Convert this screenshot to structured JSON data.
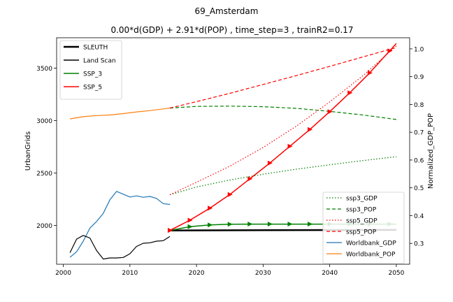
{
  "chart_data": {
    "type": "line",
    "suptitle": "69_Amsterdam",
    "title": "0.00*d(GDP) + 2.91*d(POP) , time_step=3 , trainR2=0.17",
    "xlim": [
      1999,
      2052
    ],
    "x_ticks": [
      2000,
      2010,
      2020,
      2030,
      2040,
      2050
    ],
    "left_axis": {
      "label": "UrbanGrids",
      "ylim": [
        1630,
        3790
      ],
      "ticks": [
        2000,
        2500,
        3000,
        3500
      ]
    },
    "right_axis": {
      "label": "Normalized_GDP_POP",
      "ylim": [
        0.225,
        1.04
      ],
      "ticks": [
        0.3,
        0.4,
        0.5,
        0.6,
        0.7,
        0.8,
        0.9,
        1.0
      ]
    },
    "legend_left": [
      {
        "label": "SLEUTH",
        "color": "#000000",
        "width": 2.5
      },
      {
        "label": "Land Scan",
        "color": "#000000",
        "width": 1.5
      },
      {
        "label": "SSP_3",
        "color": "#008000",
        "width": 1.5
      },
      {
        "label": "SSP_5",
        "color": "#ff0000",
        "width": 1.5
      }
    ],
    "legend_right": [
      {
        "label": "ssp3_GDP",
        "color": "#008000",
        "dash": "dotted"
      },
      {
        "label": "ssp3_POP",
        "color": "#008000",
        "dash": "dashed"
      },
      {
        "label": "ssp5_GDP",
        "color": "#ff0000",
        "dash": "dotted"
      },
      {
        "label": "ssp5_POP",
        "color": "#ff0000",
        "dash": "dashed"
      },
      {
        "label": "Worldbank_GDP",
        "color": "#1f77b4",
        "dash": "solid"
      },
      {
        "label": "Worldbank_POP",
        "color": "#ff7f0e",
        "dash": "solid"
      }
    ],
    "series": [
      {
        "name": "SLEUTH",
        "axis": "left",
        "color": "#000000",
        "width": 2.5,
        "style": "solid",
        "x": [
          2016,
          2050
        ],
        "y": [
          1953,
          1957
        ]
      },
      {
        "name": "Land Scan",
        "axis": "left",
        "color": "#000000",
        "width": 1.2,
        "style": "solid",
        "x": [
          2001,
          2002,
          2003,
          2004,
          2005,
          2006,
          2007,
          2008,
          2009,
          2010,
          2011,
          2012,
          2013,
          2014,
          2015,
          2016
        ],
        "y": [
          1740,
          1870,
          1905,
          1880,
          1760,
          1680,
          1690,
          1690,
          1695,
          1730,
          1800,
          1830,
          1835,
          1850,
          1855,
          1895
        ]
      },
      {
        "name": "SSP_3",
        "axis": "left",
        "color": "#008000",
        "width": 1.5,
        "style": "solid",
        "marker": "triangle",
        "x": [
          2016,
          2019,
          2022,
          2025,
          2028,
          2031,
          2034,
          2037,
          2040,
          2043,
          2046,
          2049,
          2050
        ],
        "y": [
          1953,
          1988,
          2005,
          2012,
          2013,
          2013,
          2013,
          2013,
          2013,
          2013,
          2013,
          2013,
          2013
        ]
      },
      {
        "name": "SSP_5",
        "axis": "left",
        "color": "#ff0000",
        "width": 1.5,
        "style": "solid",
        "marker": "triangle",
        "x": [
          2016,
          2019,
          2022,
          2025,
          2028,
          2031,
          2034,
          2037,
          2040,
          2043,
          2046,
          2049,
          2050
        ],
        "y": [
          1953,
          2050,
          2165,
          2295,
          2445,
          2595,
          2755,
          2915,
          3085,
          3265,
          3455,
          3665,
          3735
        ]
      },
      {
        "name": "ssp3_GDP",
        "axis": "right",
        "color": "#008000",
        "width": 1.2,
        "style": "dotted",
        "x": [
          2016,
          2020,
          2025,
          2030,
          2035,
          2040,
          2045,
          2050
        ],
        "y": [
          0.475,
          0.503,
          0.528,
          0.549,
          0.567,
          0.583,
          0.598,
          0.612
        ]
      },
      {
        "name": "ssp3_POP",
        "axis": "right",
        "color": "#008000",
        "width": 1.2,
        "style": "dashed",
        "x": [
          2016,
          2020,
          2025,
          2030,
          2035,
          2040,
          2045,
          2050
        ],
        "y": [
          0.787,
          0.793,
          0.794,
          0.792,
          0.786,
          0.775,
          0.762,
          0.746
        ]
      },
      {
        "name": "ssp5_GDP",
        "axis": "right",
        "color": "#ff0000",
        "width": 1.2,
        "style": "dotted",
        "x": [
          2016,
          2020,
          2025,
          2030,
          2035,
          2040,
          2045,
          2050
        ],
        "y": [
          0.475,
          0.52,
          0.578,
          0.645,
          0.722,
          0.809,
          0.904,
          1.01
        ]
      },
      {
        "name": "ssp5_POP",
        "axis": "right",
        "color": "#ff0000",
        "width": 1.2,
        "style": "dashed",
        "x": [
          2016,
          2020,
          2025,
          2030,
          2035,
          2040,
          2045,
          2050
        ],
        "y": [
          0.787,
          0.81,
          0.84,
          0.872,
          0.904,
          0.937,
          0.971,
          1.005
        ]
      },
      {
        "name": "Worldbank_GDP",
        "axis": "right",
        "color": "#1f77b4",
        "width": 1.2,
        "style": "solid",
        "x": [
          2001,
          2002,
          2003,
          2004,
          2005,
          2006,
          2007,
          2008,
          2009,
          2010,
          2011,
          2012,
          2013,
          2014,
          2015,
          2016
        ],
        "y": [
          0.25,
          0.27,
          0.308,
          0.355,
          0.379,
          0.408,
          0.457,
          0.487,
          0.477,
          0.467,
          0.471,
          0.466,
          0.469,
          0.462,
          0.443,
          0.44
        ]
      },
      {
        "name": "Worldbank_POP",
        "axis": "right",
        "color": "#ff7f0e",
        "width": 1.2,
        "style": "solid",
        "x": [
          2001,
          2003,
          2005,
          2007,
          2009,
          2011,
          2013,
          2015,
          2016
        ],
        "y": [
          0.748,
          0.756,
          0.76,
          0.762,
          0.767,
          0.773,
          0.778,
          0.784,
          0.787
        ]
      }
    ]
  }
}
